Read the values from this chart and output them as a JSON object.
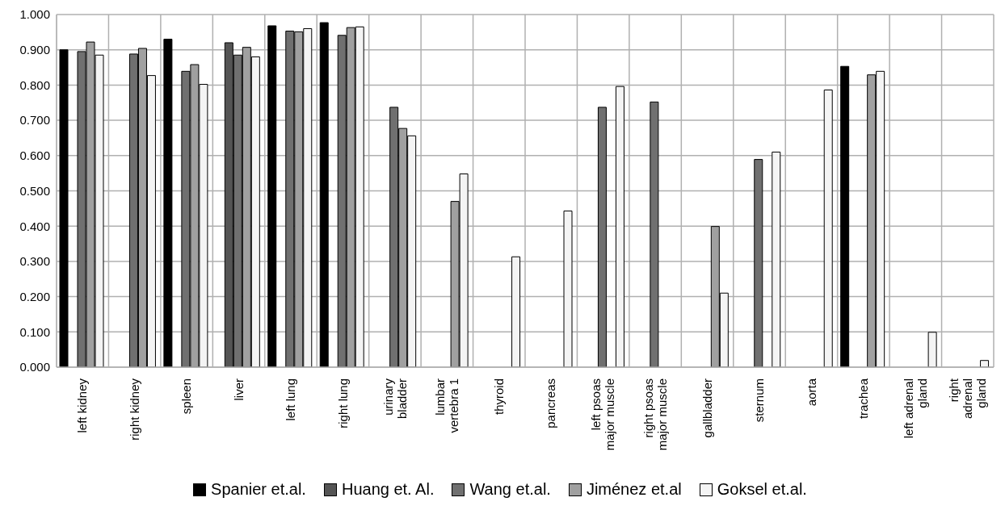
{
  "chart_data": {
    "type": "bar",
    "categories": [
      "left kidney",
      "right kidney",
      "spleen",
      "liver",
      "left lung",
      "right lung",
      "urinary bladder",
      "lumbar vertebra 1",
      "thyroid",
      "pancreas",
      "left psoas major muscle",
      "right psoas major muscle",
      "gallbladder",
      "sternum",
      "aorta",
      "trachea",
      "left adrenal gland",
      "right adrenal gland"
    ],
    "series": [
      {
        "name": "Spanier et.al.",
        "color": "#000000",
        "values": [
          0.9,
          null,
          0.93,
          null,
          0.968,
          0.977,
          null,
          null,
          null,
          null,
          null,
          null,
          null,
          null,
          null,
          0.853,
          null,
          null
        ]
      },
      {
        "name": "Huang et. Al.",
        "color": "#555555",
        "values": [
          null,
          null,
          null,
          0.92,
          null,
          null,
          null,
          null,
          null,
          null,
          null,
          null,
          null,
          null,
          null,
          null,
          null,
          null
        ]
      },
      {
        "name": "Wang et.al.",
        "color": "#707070",
        "values": [
          0.895,
          0.888,
          0.839,
          0.885,
          0.953,
          0.941,
          0.737,
          null,
          null,
          null,
          0.737,
          0.752,
          null,
          0.589,
          null,
          null,
          null,
          null
        ]
      },
      {
        "name": "Jiménez et.al",
        "color": "#a0a0a0",
        "values": [
          0.922,
          0.904,
          0.858,
          0.907,
          0.951,
          0.963,
          0.677,
          0.47,
          null,
          null,
          null,
          null,
          0.399,
          null,
          null,
          0.829,
          null,
          null
        ]
      },
      {
        "name": "Goksel et.al.",
        "color": "#f4f4f4",
        "values": [
          0.885,
          0.827,
          0.802,
          0.88,
          0.96,
          0.965,
          0.656,
          0.548,
          0.313,
          0.443,
          0.796,
          null,
          0.21,
          0.61,
          0.786,
          0.839,
          0.099,
          0.019
        ]
      }
    ],
    "ylim": [
      0,
      1
    ],
    "yticks": [
      {
        "value": 0,
        "label": "0.000"
      },
      {
        "value": 0.1,
        "label": "0.100"
      },
      {
        "value": 0.2,
        "label": "0.200"
      },
      {
        "value": 0.3,
        "label": "0.300"
      },
      {
        "value": 0.4,
        "label": "0.400"
      },
      {
        "value": 0.5,
        "label": "0.500"
      },
      {
        "value": 0.6,
        "label": "0.600"
      },
      {
        "value": 0.7,
        "label": "0.700"
      },
      {
        "value": 0.8,
        "label": "0.800"
      },
      {
        "value": 0.9,
        "label": "0.900"
      },
      {
        "value": 1,
        "label": "1.000"
      }
    ],
    "grid": true,
    "legend": "bottom"
  }
}
